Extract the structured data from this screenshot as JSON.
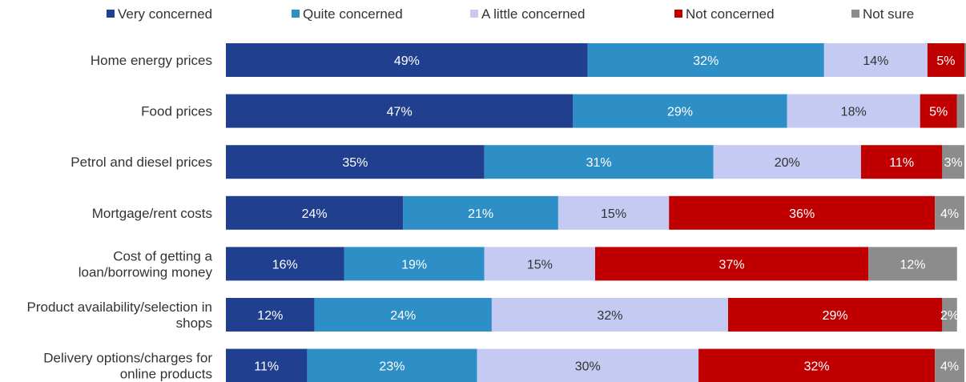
{
  "chart_data": {
    "type": "bar",
    "orientation": "horizontal",
    "stacked": true,
    "grid": false,
    "legend_position": "top",
    "title": "",
    "xlabel": "",
    "ylabel": "",
    "categories": [
      "Home energy prices",
      "Food prices",
      "Petrol and diesel prices",
      "Mortgage/rent costs",
      "Cost of getting a loan/borrowing money",
      "Product availability/selection in shops",
      "Delivery options/charges for online products"
    ],
    "category_lines": [
      [
        "Home energy prices"
      ],
      [
        "Food prices"
      ],
      [
        "Petrol and diesel prices"
      ],
      [
        "Mortgage/rent costs"
      ],
      [
        "Cost of getting a",
        "loan/borrowing money"
      ],
      [
        "Product availability/selection in",
        "shops"
      ],
      [
        "Delivery options/charges for",
        "online products"
      ]
    ],
    "series": [
      {
        "name": "Very concerned",
        "color": "#203f8e",
        "label_color": "#ffffff",
        "values": [
          49,
          47,
          35,
          24,
          16,
          12,
          11
        ],
        "labels": [
          "49%",
          "47%",
          "35%",
          "24%",
          "16%",
          "12%",
          "11%"
        ]
      },
      {
        "name": "Quite concerned",
        "color": "#2e8fc6",
        "label_color": "#ffffff",
        "values": [
          32,
          29,
          31,
          21,
          19,
          24,
          23
        ],
        "labels": [
          "32%",
          "29%",
          "31%",
          "21%",
          "19%",
          "24%",
          "23%"
        ]
      },
      {
        "name": "A little concerned",
        "color": "#c5caf2",
        "label_color": "#333333",
        "values": [
          14,
          18,
          20,
          15,
          15,
          32,
          30
        ],
        "labels": [
          "14%",
          "18%",
          "20%",
          "15%",
          "15%",
          "32%",
          "30%"
        ]
      },
      {
        "name": "Not concerned",
        "color": "#c00000",
        "label_color": "#ffffff",
        "values": [
          5,
          5,
          11,
          36,
          37,
          29,
          32
        ],
        "labels": [
          "5%",
          "5%",
          "11%",
          "36%",
          "37%",
          "29%",
          "32%"
        ]
      },
      {
        "name": "Not sure",
        "color": "#8c8c8c",
        "label_color": "#ffffff",
        "values": [
          1,
          1,
          3,
          4,
          12,
          2,
          4
        ],
        "labels": [
          "",
          "",
          "3%",
          "4%",
          "12%",
          "2%",
          "4%"
        ]
      }
    ],
    "xlim": [
      0,
      100
    ]
  }
}
